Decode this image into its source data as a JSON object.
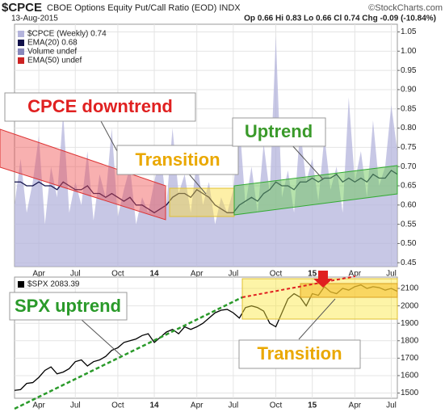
{
  "chart_data": [
    {
      "type": "area",
      "title": "$CPCE",
      "subtitle": "CBOE Options Equity Put/Call Ratio (EOD) INDX",
      "date": "13-Aug-2015",
      "quote": "Op 0.66 Hi 0.83 Lo 0.66 Cl 0.74 Chg -0.09 (-10.84%)",
      "source": "©StockCharts.com",
      "categories": [
        null,
        null,
        null,
        null,
        "Apr",
        null,
        null,
        null,
        null,
        null,
        "Jul",
        null,
        null,
        null,
        null,
        null,
        null,
        "Oct",
        null,
        null,
        null,
        null,
        null,
        "14",
        null,
        null,
        null,
        null,
        null,
        null,
        "Apr",
        null,
        null,
        null,
        null,
        null,
        "Jul",
        null,
        null,
        null,
        null,
        null,
        null,
        "Oct",
        null,
        null,
        null,
        null,
        null,
        "15",
        null,
        null,
        null,
        null,
        null,
        null,
        "Apr",
        null,
        null,
        null,
        null,
        null,
        "Jul",
        null
      ],
      "series": [
        {
          "name": "$CPCE (Weekly) 0.74",
          "type": "area",
          "color": "#b4b4dc",
          "values": [
            0.6,
            0.72,
            0.58,
            0.66,
            0.78,
            0.55,
            0.7,
            0.62,
            0.84,
            0.58,
            0.66,
            0.6,
            0.74,
            0.56,
            0.68,
            0.62,
            0.8,
            0.57,
            0.64,
            0.7,
            0.55,
            0.62,
            0.58,
            0.66,
            0.74,
            0.6,
            0.8,
            0.63,
            0.68,
            0.58,
            0.72,
            0.6,
            0.66,
            0.55,
            0.62,
            0.58,
            0.64,
            0.82,
            0.6,
            0.7,
            0.58,
            0.76,
            0.63,
            1.04,
            0.62,
            0.69,
            0.58,
            0.8,
            0.66,
            0.72,
            0.61,
            0.78,
            0.64,
            0.7,
            0.58,
            0.88,
            0.66,
            0.74,
            0.62,
            0.82,
            0.65,
            0.7,
            0.86,
            0.74
          ]
        },
        {
          "name": "EMA(20) 0.68",
          "type": "line",
          "color": "#10104a",
          "values": [
            0.66,
            0.66,
            0.65,
            0.65,
            0.66,
            0.65,
            0.65,
            0.64,
            0.66,
            0.65,
            0.64,
            0.64,
            0.65,
            0.63,
            0.63,
            0.62,
            0.63,
            0.62,
            0.61,
            0.62,
            0.6,
            0.6,
            0.59,
            0.58,
            0.59,
            0.6,
            0.62,
            0.63,
            0.63,
            0.62,
            0.64,
            0.63,
            0.62,
            0.6,
            0.59,
            0.58,
            0.58,
            0.6,
            0.61,
            0.62,
            0.61,
            0.63,
            0.64,
            0.66,
            0.65,
            0.65,
            0.64,
            0.66,
            0.66,
            0.67,
            0.66,
            0.67,
            0.67,
            0.68,
            0.66,
            0.67,
            0.66,
            0.67,
            0.66,
            0.68,
            0.67,
            0.67,
            0.69,
            0.68
          ]
        }
      ],
      "other_legend": [
        {
          "name": "Volume undef",
          "color": "#8888bb"
        },
        {
          "name": "EMA(50) undef",
          "color": "#cc2222"
        }
      ],
      "ylim": [
        0.44,
        1.07
      ],
      "yticks": [
        0.45,
        {
          "value": 0.5,
          "label": "0.50"
        },
        0.55,
        {
          "value": 0.6,
          "label": "0.60"
        },
        0.65,
        {
          "value": 0.7,
          "label": "0.70"
        },
        0.75,
        {
          "value": 0.8,
          "label": "0.80"
        },
        0.85,
        {
          "value": 0.9,
          "label": "0.90"
        },
        0.95,
        {
          "value": 1,
          "label": "1.00"
        },
        1.05
      ],
      "annotations": [
        "CPCE downtrend",
        "Transition",
        "Uptrend"
      ]
    },
    {
      "type": "line",
      "categories": [
        null,
        null,
        null,
        null,
        "Apr",
        null,
        null,
        null,
        null,
        null,
        "Jul",
        null,
        null,
        null,
        null,
        null,
        null,
        "Oct",
        null,
        null,
        null,
        null,
        null,
        "14",
        null,
        null,
        null,
        null,
        null,
        null,
        "Apr",
        null,
        null,
        null,
        null,
        null,
        "Jul",
        null,
        null,
        null,
        null,
        null,
        null,
        "Oct",
        null,
        null,
        null,
        null,
        null,
        "15",
        null,
        null,
        null,
        null,
        null,
        null,
        "Apr",
        null,
        null,
        null,
        null,
        null,
        "Jul",
        null
      ],
      "series": [
        {
          "name": "$SPX 2083.39",
          "type": "line",
          "color": "#000000",
          "values": [
            1515,
            1520,
            1555,
            1560,
            1590,
            1630,
            1650,
            1610,
            1620,
            1640,
            1680,
            1690,
            1655,
            1680,
            1690,
            1710,
            1745,
            1760,
            1790,
            1800,
            1810,
            1830,
            1840,
            1790,
            1820,
            1850,
            1865,
            1840,
            1880,
            1865,
            1880,
            1900,
            1930,
            1960,
            1975,
            1980,
            1960,
            1930,
            1990,
            2000,
            1990,
            1970,
            1900,
            1880,
            1960,
            2040,
            2070,
            2050,
            2000,
            2070,
            2060,
            2110,
            2080,
            2070,
            2100,
            2090,
            2110,
            2120,
            2100,
            2110,
            2105,
            2090,
            2100,
            2083.39
          ]
        }
      ],
      "ylim": [
        1470,
        2165
      ],
      "yticks": [
        1500,
        1600,
        1700,
        1800,
        1900,
        2000,
        2100
      ],
      "annotations": [
        "SPX uptrend",
        "Transition"
      ]
    }
  ]
}
